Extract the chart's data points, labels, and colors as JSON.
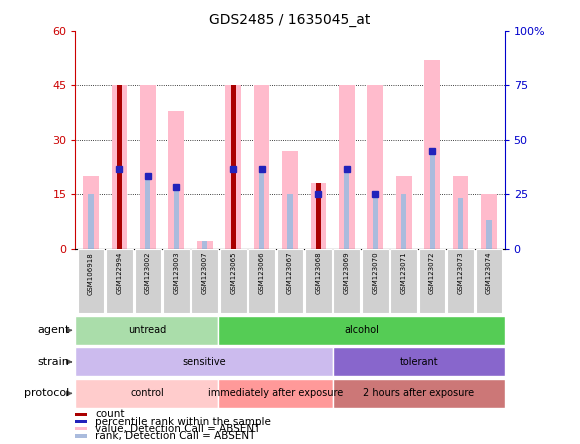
{
  "title": "GDS2485 / 1635045_at",
  "samples": [
    "GSM106918",
    "GSM122994",
    "GSM123002",
    "GSM123003",
    "GSM123007",
    "GSM123065",
    "GSM123066",
    "GSM123067",
    "GSM123068",
    "GSM123069",
    "GSM123070",
    "GSM123071",
    "GSM123072",
    "GSM123073",
    "GSM123074"
  ],
  "count_values": [
    0,
    45,
    0,
    0,
    0,
    45,
    0,
    0,
    18,
    0,
    0,
    0,
    0,
    0,
    0
  ],
  "value_absent": [
    20,
    45,
    45,
    38,
    2,
    45,
    45,
    27,
    18,
    45,
    45,
    20,
    52,
    20,
    15
  ],
  "rank_absent": [
    15,
    22,
    20,
    17,
    2,
    22,
    22,
    15,
    15,
    22,
    15,
    15,
    27,
    14,
    8
  ],
  "percentile_blue": [
    0,
    22,
    20,
    17,
    0,
    22,
    22,
    0,
    15,
    22,
    15,
    0,
    27,
    0,
    0
  ],
  "ylim_left": [
    0,
    60
  ],
  "ylim_right": [
    0,
    100
  ],
  "yticks_left": [
    0,
    15,
    30,
    45,
    60
  ],
  "yticks_right": [
    0,
    25,
    50,
    75,
    100
  ],
  "ytick_labels_left": [
    "0",
    "15",
    "30",
    "45",
    "60"
  ],
  "ytick_labels_right": [
    "0",
    "25",
    "50",
    "75",
    "100%"
  ],
  "count_color": "#AA0000",
  "value_absent_color": "#FFBBCC",
  "rank_absent_color": "#AABBDD",
  "percentile_color": "#2222BB",
  "agent_groups": [
    {
      "label": "untread",
      "start": 0,
      "end": 5,
      "color": "#AADDAA"
    },
    {
      "label": "alcohol",
      "start": 5,
      "end": 15,
      "color": "#55CC55"
    }
  ],
  "strain_groups": [
    {
      "label": "sensitive",
      "start": 0,
      "end": 9,
      "color": "#CCBBEE"
    },
    {
      "label": "tolerant",
      "start": 9,
      "end": 15,
      "color": "#8866CC"
    }
  ],
  "protocol_groups": [
    {
      "label": "control",
      "start": 0,
      "end": 5,
      "color": "#FFCCCC"
    },
    {
      "label": "immediately after exposure",
      "start": 5,
      "end": 9,
      "color": "#FF9999"
    },
    {
      "label": "2 hours after exposure",
      "start": 9,
      "end": 15,
      "color": "#CC7777"
    }
  ],
  "legend_items": [
    {
      "label": "count",
      "color": "#AA0000"
    },
    {
      "label": "percentile rank within the sample",
      "color": "#2222BB"
    },
    {
      "label": "value, Detection Call = ABSENT",
      "color": "#FFBBCC"
    },
    {
      "label": "rank, Detection Call = ABSENT",
      "color": "#AABBDD"
    }
  ],
  "axis_color_left": "#CC0000",
  "axis_color_right": "#0000CC"
}
